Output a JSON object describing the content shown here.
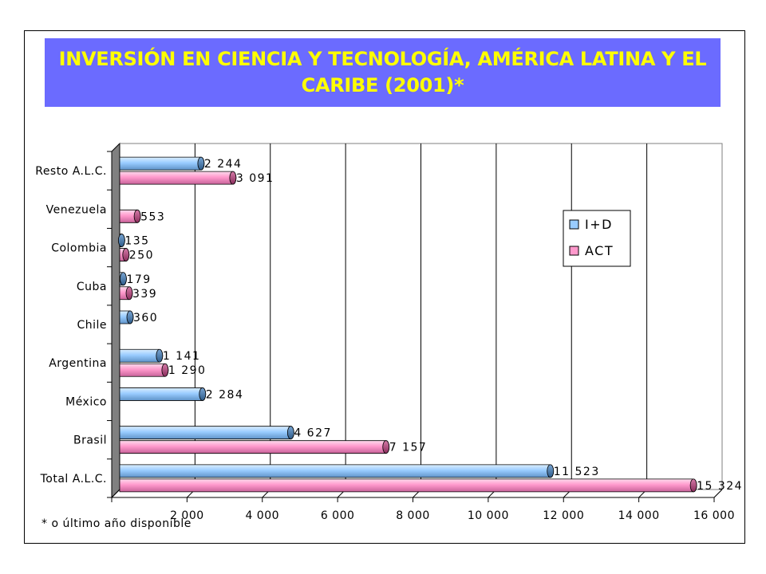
{
  "title": "INVERSIÓN EN CIENCIA Y TECNOLOGÍA, AMÉRICA LATINA Y EL CARIBE (2001)*",
  "footnote": "* o último año disponible",
  "chart_data": {
    "type": "bar",
    "orientation": "horizontal",
    "categories": [
      "Resto A.L.C.",
      "Venezuela",
      "Colombia",
      "Cuba",
      "Chile",
      "Argentina",
      "México",
      "Brasil",
      "Total A.L.C."
    ],
    "series": [
      {
        "name": "I+D",
        "color": "#99ccff",
        "values": [
          2244,
          null,
          135,
          179,
          360,
          1141,
          2284,
          4627,
          11523
        ],
        "labels": [
          "2 244",
          "",
          "135",
          "179",
          "360",
          "1 141",
          "2 284",
          "4 627",
          "11 523"
        ]
      },
      {
        "name": "ACT",
        "color": "#ff99cc",
        "values": [
          3091,
          553,
          250,
          339,
          null,
          1290,
          null,
          7157,
          15324
        ],
        "labels": [
          "3 091",
          "553",
          "250",
          "339",
          "",
          "1 290",
          "",
          "7 157",
          "15 324"
        ]
      }
    ],
    "xlim": [
      0,
      16000
    ],
    "xticks": [
      0,
      2000,
      4000,
      6000,
      8000,
      10000,
      12000,
      14000,
      16000
    ],
    "xtick_labels": [
      "",
      "2 000",
      "4 000",
      "6 000",
      "8 000",
      "10 000",
      "12 000",
      "14 000",
      "16 000"
    ],
    "grid": "vertical",
    "legend": "right"
  }
}
